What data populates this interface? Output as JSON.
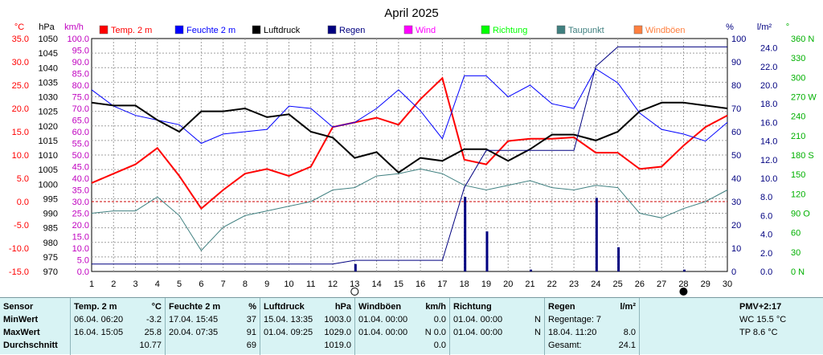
{
  "chart_data": {
    "type": "line",
    "title": "April 2025",
    "x": [
      1,
      2,
      3,
      4,
      5,
      6,
      7,
      8,
      9,
      10,
      11,
      12,
      13,
      14,
      15,
      16,
      17,
      18,
      19,
      20,
      21,
      22,
      23,
      24,
      25,
      26,
      27,
      28,
      29,
      30
    ],
    "x_ticks": [
      "1",
      "2",
      "3",
      "4",
      "5",
      "6",
      "7",
      "8",
      "9",
      "10",
      "11",
      "12",
      "13",
      "14",
      "15",
      "16",
      "17",
      "18",
      "19",
      "20",
      "21",
      "22",
      "23",
      "24",
      "25",
      "26",
      "27",
      "28",
      "29",
      "30"
    ],
    "axis_units": {
      "temp": "°C",
      "pressure": "hPa",
      "wind": "km/h",
      "humidity": "%",
      "rain": "l/m²",
      "direction": "°"
    },
    "axes": {
      "temp": {
        "min": -15,
        "max": 35,
        "ticks": [
          "35.0",
          "30.0",
          "25.0",
          "20.0",
          "15.0",
          "10.0",
          "5.0",
          "0.0",
          "-5.0",
          "-10.0",
          "-15.0"
        ]
      },
      "pressure": {
        "min": 970,
        "max": 1050,
        "ticks": [
          "1050",
          "1045",
          "1040",
          "1035",
          "1030",
          "1025",
          "1020",
          "1015",
          "1010",
          "1005",
          "1000",
          "995",
          "990",
          "985",
          "980",
          "975",
          "970"
        ]
      },
      "wind": {
        "min": 0,
        "max": 100,
        "ticks": [
          "100.0",
          "95.0",
          "90.0",
          "85.0",
          "80.0",
          "75.0",
          "70.0",
          "65.0",
          "60.0",
          "55.0",
          "50.0",
          "45.0",
          "40.0",
          "35.0",
          "30.0",
          "25.0",
          "20.0",
          "15.0",
          "10.0",
          "5.0",
          "0.0"
        ]
      },
      "humidity": {
        "min": 0,
        "max": 100,
        "ticks": [
          "100",
          "90",
          "80",
          "70",
          "60",
          "50",
          "40",
          "30",
          "20",
          "10",
          "0"
        ]
      },
      "rain": {
        "min": 0,
        "max": 25,
        "ticks": [
          "24.0",
          "22.0",
          "20.0",
          "18.0",
          "16.0",
          "14.0",
          "12.0",
          "10.0",
          "8.0",
          "6.0",
          "4.0",
          "2.0",
          "0.0"
        ]
      },
      "direction": {
        "min": 0,
        "max": 360,
        "ticks": [
          "360 N",
          "330",
          "300",
          "270 W",
          "240",
          "210",
          "180 S",
          "150",
          "120",
          "90 O",
          "60",
          "30",
          "0 N"
        ]
      }
    },
    "legend": [
      {
        "name": "Temp. 2 m",
        "color": "#ff0000"
      },
      {
        "name": "Feuchte  2 m",
        "color": "#0000ff"
      },
      {
        "name": "Luftdruck",
        "color": "#000000"
      },
      {
        "name": "Regen",
        "color": "#000080"
      },
      {
        "name": "Wind",
        "color": "#ff00ff"
      },
      {
        "name": "Richtung",
        "color": "#00ff00"
      },
      {
        "name": "Taupunkt",
        "color": "#408080"
      },
      {
        "name": "Windböen",
        "color": "#ff8040"
      }
    ],
    "series": [
      {
        "name": "Temp. 2 m",
        "axis": "temp",
        "color": "#ff0000",
        "values": [
          4.0,
          6.0,
          8.0,
          11.5,
          5.5,
          -1.5,
          2.5,
          6.0,
          7.0,
          5.5,
          7.5,
          16.0,
          17.0,
          18.0,
          16.5,
          22.0,
          26.5,
          9.0,
          8.0,
          13.0,
          13.5,
          13.5,
          13.8,
          10.5,
          10.5,
          7.0,
          7.5,
          12.0,
          16.0,
          18.5
        ]
      },
      {
        "name": "Feuchte  2 m",
        "axis": "humidity",
        "color": "#0000ff",
        "values": [
          78,
          71,
          67,
          65,
          63,
          55,
          59,
          60,
          61,
          71,
          70,
          62,
          64,
          70,
          78,
          69,
          57,
          84,
          84,
          75,
          80,
          72,
          70,
          87,
          81,
          68,
          61,
          59,
          56,
          64
        ]
      },
      {
        "name": "Luftdruck",
        "axis": "pressure",
        "color": "#000000",
        "values": [
          1028,
          1027,
          1027,
          1022,
          1018,
          1025,
          1025,
          1026,
          1023,
          1024,
          1018,
          1016,
          1009,
          1011,
          1004,
          1009,
          1008,
          1012,
          1012,
          1008,
          1012,
          1017,
          1017,
          1015,
          1018,
          1025,
          1028,
          1028,
          1027,
          1026
        ]
      },
      {
        "name": "Taupunkt",
        "axis": "temp",
        "color": "#408080",
        "values": [
          -2.5,
          -2.0,
          -2.0,
          1.0,
          -3.0,
          -10.5,
          -5.5,
          -3.0,
          -2.0,
          -1.0,
          0.0,
          2.5,
          3.0,
          5.5,
          6.0,
          7.0,
          6.0,
          3.5,
          2.5,
          3.5,
          4.5,
          3.0,
          2.5,
          3.5,
          3.0,
          -2.5,
          -3.5,
          -1.5,
          0.0,
          2.5
        ]
      },
      {
        "name": "Regen",
        "axis": "rain",
        "color": "#000080",
        "values": [
          0.8,
          0.8,
          0.8,
          0.8,
          0.8,
          0.8,
          0.8,
          0.8,
          0.8,
          0.8,
          0.8,
          0.8,
          1.2,
          1.2,
          1.2,
          1.2,
          1.2,
          9.0,
          13.0,
          13.0,
          13.0,
          13.0,
          13.0,
          22.0,
          24.1,
          24.1,
          24.1,
          24.1,
          24.1,
          24.1
        ]
      }
    ],
    "rain_bars": [
      {
        "x": 13,
        "value": 0.8
      },
      {
        "x": 18,
        "value": 8.0
      },
      {
        "x": 19,
        "value": 4.3
      },
      {
        "x": 21,
        "value": 0.2
      },
      {
        "x": 24,
        "value": 7.9
      },
      {
        "x": 25,
        "value": 2.6
      },
      {
        "x": 28,
        "value": 0.2
      }
    ],
    "moon": [
      {
        "x": 13,
        "phase": "full"
      },
      {
        "x": 28,
        "phase": "new"
      }
    ]
  },
  "stats": {
    "row_labels": {
      "sensor": "Sensor",
      "min": "MinWert",
      "max": "MaxWert",
      "avg": "Durchschnitt"
    },
    "temp": {
      "title": "Temp. 2 m",
      "unit": "°C",
      "min_time": "06.04.  06:20",
      "min_val": "-3.2",
      "max_time": "16.04.  15:05",
      "max_val": "25.8",
      "avg": "10.77"
    },
    "hum": {
      "title": "Feuchte  2 m",
      "unit": "%",
      "min_time": "17.04.  15:45",
      "min_val": "37",
      "max_time": "20.04.  07:35",
      "max_val": "91",
      "avg": "69"
    },
    "press": {
      "title": "Luftdruck",
      "unit": "hPa",
      "min_time": "15.04.  13:35",
      "min_val": "1003.0",
      "max_time": "01.04.  09:25",
      "max_val": "1029.0",
      "avg": "1019.0"
    },
    "gust": {
      "title": "Windböen",
      "unit": "km/h",
      "min_time": "01.04.  00:00",
      "min_val": "0.0",
      "max_time": "01.04.  00:00",
      "max_val": "N 0.0",
      "avg": "0.0"
    },
    "dir": {
      "title": "Richtung",
      "min_time": "01.04.  00:00",
      "min_val": "N",
      "max_time": "01.04.  00:00",
      "max_val": "N",
      "avg": ""
    },
    "rain": {
      "title": "Regen",
      "unit": "l/m²",
      "line1": "Regentage: 7",
      "line2_time": "18.04.  11:20",
      "line2_val": "8.0",
      "line3_label": "Gesamt:",
      "line3_val": "24.1"
    },
    "pmv": {
      "title": "PMV+2:17",
      "wc": "WC 15.5 °C",
      "tp": "TP 8.6 °C"
    }
  }
}
